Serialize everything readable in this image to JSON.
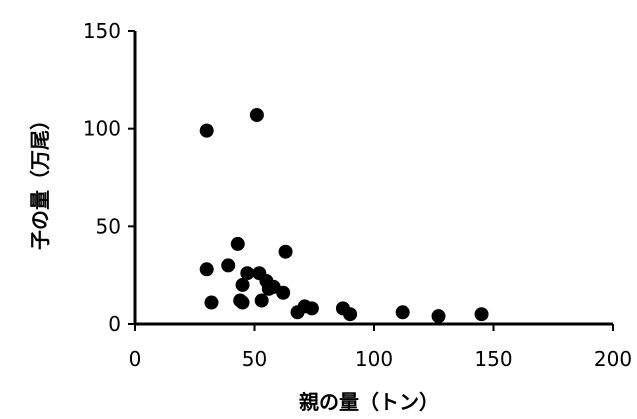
{
  "chart_data": {
    "type": "scatter",
    "title": "",
    "xlabel": "親の量（トン）",
    "ylabel": "子の量（万尾）",
    "xlim": [
      0,
      200
    ],
    "ylim": [
      0,
      150
    ],
    "xticks": [
      "0",
      "50",
      "100",
      "150",
      "200"
    ],
    "yticks": [
      "0",
      "50",
      "100",
      "150"
    ],
    "grid": false,
    "legend": "none",
    "marker_color": "#000000",
    "axis_color": "#000000",
    "series": [
      {
        "points": [
          {
            "x": 30,
            "y": 99
          },
          {
            "x": 51,
            "y": 107
          },
          {
            "x": 30,
            "y": 28
          },
          {
            "x": 32,
            "y": 11
          },
          {
            "x": 39,
            "y": 30
          },
          {
            "x": 43,
            "y": 41
          },
          {
            "x": 44,
            "y": 12
          },
          {
            "x": 45,
            "y": 11
          },
          {
            "x": 45,
            "y": 20
          },
          {
            "x": 47,
            "y": 26
          },
          {
            "x": 52,
            "y": 26
          },
          {
            "x": 53,
            "y": 12
          },
          {
            "x": 55,
            "y": 22
          },
          {
            "x": 56,
            "y": 18
          },
          {
            "x": 58,
            "y": 19
          },
          {
            "x": 62,
            "y": 16
          },
          {
            "x": 63,
            "y": 37
          },
          {
            "x": 68,
            "y": 6
          },
          {
            "x": 71,
            "y": 9
          },
          {
            "x": 74,
            "y": 8
          },
          {
            "x": 87,
            "y": 8
          },
          {
            "x": 90,
            "y": 5
          },
          {
            "x": 112,
            "y": 6
          },
          {
            "x": 127,
            "y": 4
          },
          {
            "x": 145,
            "y": 5
          }
        ]
      }
    ]
  }
}
